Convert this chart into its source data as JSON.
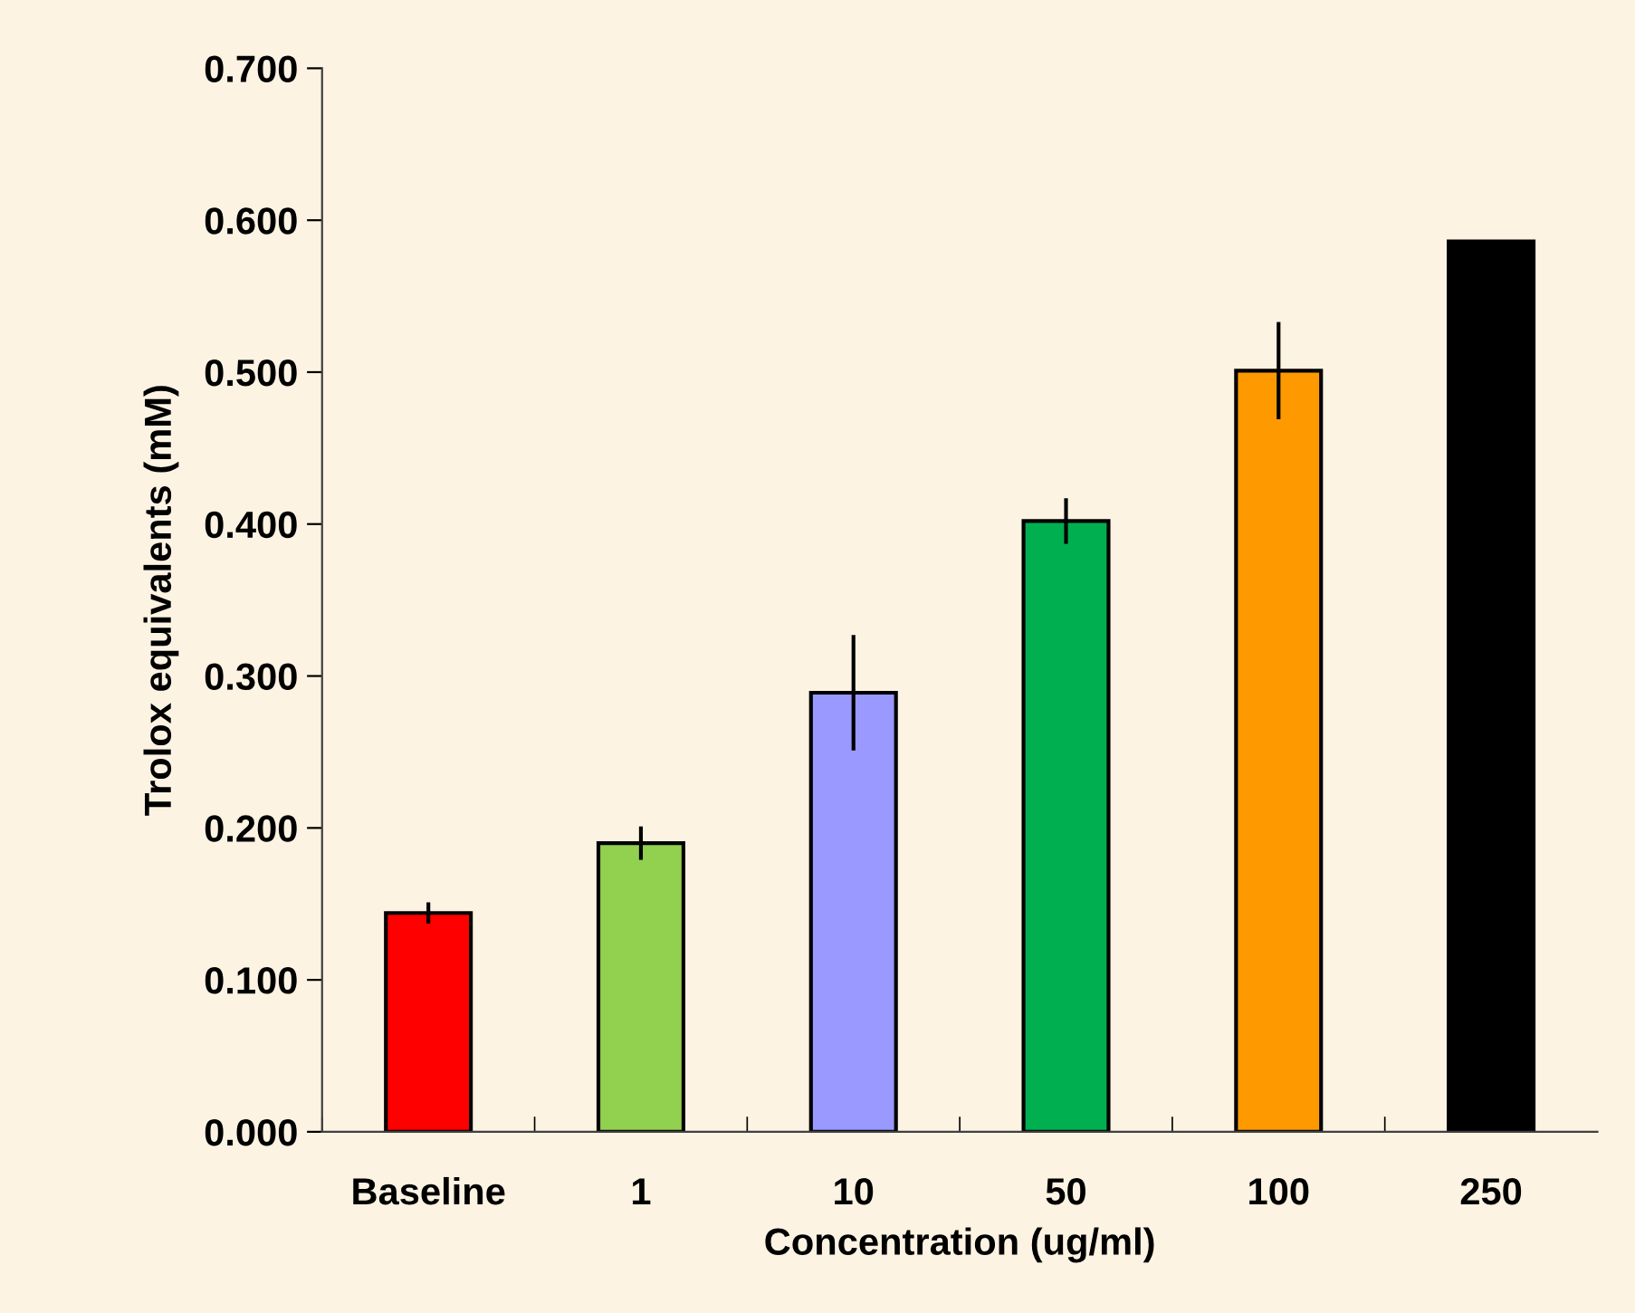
{
  "chart_data": {
    "type": "bar",
    "xlabel": "Concentration (ug/ml)",
    "ylabel": "Trolox equivalents (mM)",
    "categories": [
      "Baseline",
      "1",
      "10",
      "50",
      "100",
      "250"
    ],
    "values": [
      0.144,
      0.19,
      0.289,
      0.402,
      0.501,
      0.586
    ],
    "errors": [
      0.007,
      0.011,
      0.038,
      0.015,
      0.032,
      null
    ],
    "colors": [
      "#ff0000",
      "#92d050",
      "#9999ff",
      "#00b050",
      "#ff9900",
      "#000000"
    ],
    "ylim": [
      0,
      0.7
    ],
    "yticks": [
      {
        "value": 0,
        "label": "0.000"
      },
      {
        "value": 0.1,
        "label": "0.100"
      },
      {
        "value": 0.2,
        "label": "0.200"
      },
      {
        "value": 0.3,
        "label": "0.300"
      },
      {
        "value": 0.4,
        "label": "0.400"
      },
      {
        "value": 0.5,
        "label": "0.500"
      },
      {
        "value": 0.6,
        "label": "0.600"
      },
      {
        "value": 0.7,
        "label": "0.700"
      }
    ],
    "grid": false,
    "legend": false
  }
}
